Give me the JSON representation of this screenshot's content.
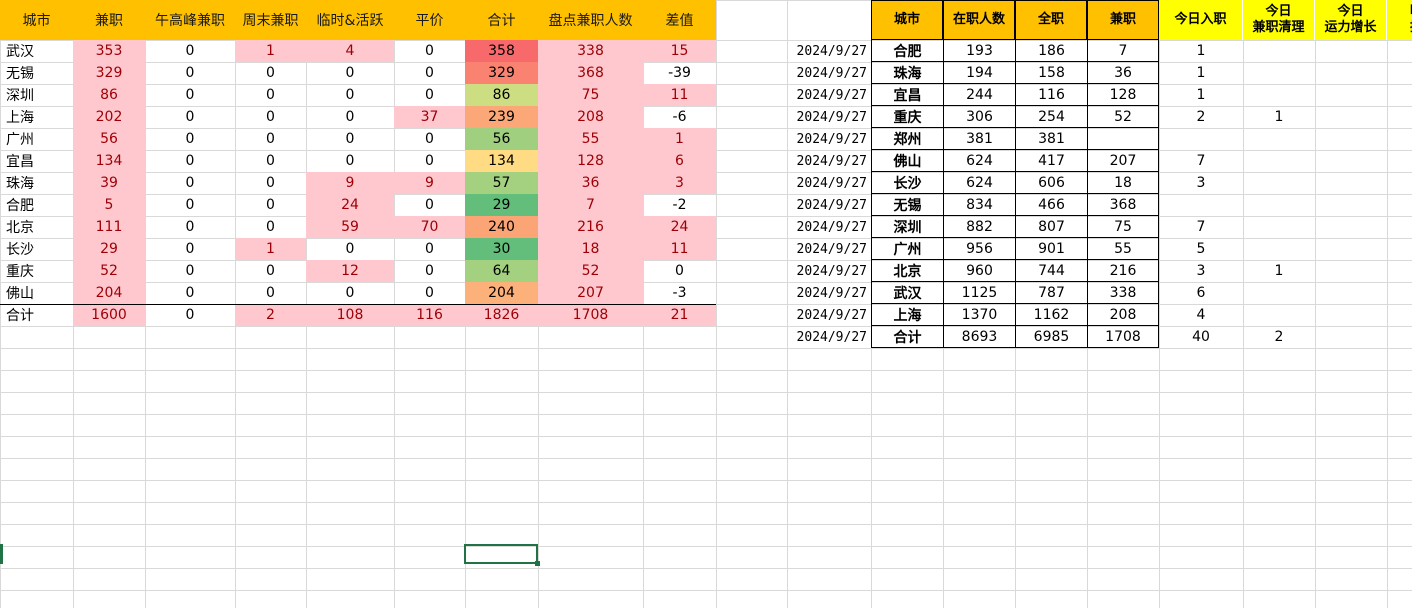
{
  "left_table": {
    "headers": [
      "城市",
      "兼职",
      "午高峰兼职",
      "周末兼职",
      "临时&活跃",
      "平价",
      "合计",
      "盘点兼职人数",
      "差值"
    ],
    "rows": [
      {
        "city": "武汉",
        "parttime": "353",
        "noon": "0",
        "weekend": "1",
        "temp": "4",
        "flat": "0",
        "total": "358",
        "count": "338",
        "diff": "15"
      },
      {
        "city": "无锡",
        "parttime": "329",
        "noon": "0",
        "weekend": "0",
        "temp": "0",
        "flat": "0",
        "total": "329",
        "count": "368",
        "diff": "-39"
      },
      {
        "city": "深圳",
        "parttime": "86",
        "noon": "0",
        "weekend": "0",
        "temp": "0",
        "flat": "0",
        "total": "86",
        "count": "75",
        "diff": "11"
      },
      {
        "city": "上海",
        "parttime": "202",
        "noon": "0",
        "weekend": "0",
        "temp": "0",
        "flat": "37",
        "total": "239",
        "count": "208",
        "diff": "-6"
      },
      {
        "city": "广州",
        "parttime": "56",
        "noon": "0",
        "weekend": "0",
        "temp": "0",
        "flat": "0",
        "total": "56",
        "count": "55",
        "diff": "1"
      },
      {
        "city": "宜昌",
        "parttime": "134",
        "noon": "0",
        "weekend": "0",
        "temp": "0",
        "flat": "0",
        "total": "134",
        "count": "128",
        "diff": "6"
      },
      {
        "city": "珠海",
        "parttime": "39",
        "noon": "0",
        "weekend": "0",
        "temp": "9",
        "flat": "9",
        "total": "57",
        "count": "36",
        "diff": "3"
      },
      {
        "city": "合肥",
        "parttime": "5",
        "noon": "0",
        "weekend": "0",
        "temp": "24",
        "flat": "0",
        "total": "29",
        "count": "7",
        "diff": "-2"
      },
      {
        "city": "北京",
        "parttime": "111",
        "noon": "0",
        "weekend": "0",
        "temp": "59",
        "flat": "70",
        "total": "240",
        "count": "216",
        "diff": "24"
      },
      {
        "city": "长沙",
        "parttime": "29",
        "noon": "0",
        "weekend": "1",
        "temp": "0",
        "flat": "0",
        "total": "30",
        "count": "18",
        "diff": "11"
      },
      {
        "city": "重庆",
        "parttime": "52",
        "noon": "0",
        "weekend": "0",
        "temp": "12",
        "flat": "0",
        "total": "64",
        "count": "52",
        "diff": "0"
      },
      {
        "city": "佛山",
        "parttime": "204",
        "noon": "0",
        "weekend": "0",
        "temp": "0",
        "flat": "0",
        "total": "204",
        "count": "207",
        "diff": "-3"
      }
    ],
    "total_row": {
      "city": "合计",
      "parttime": "1600",
      "noon": "0",
      "weekend": "2",
      "temp": "108",
      "flat": "116",
      "total": "1826",
      "count": "1708",
      "diff": "21"
    }
  },
  "right_table": {
    "headers": [
      "城市",
      "在职人数",
      "全职",
      "兼职",
      "今日入职",
      "今日\n兼职清理",
      "今日\n运力增长",
      "明日\n招聘"
    ],
    "rows": [
      {
        "date": "2024/9/27",
        "city": "合肥",
        "onjob": "193",
        "full": "186",
        "part": "7",
        "join": "1",
        "clear": "",
        "growth": ""
      },
      {
        "date": "2024/9/27",
        "city": "珠海",
        "onjob": "194",
        "full": "158",
        "part": "36",
        "join": "1",
        "clear": "",
        "growth": ""
      },
      {
        "date": "2024/9/27",
        "city": "宜昌",
        "onjob": "244",
        "full": "116",
        "part": "128",
        "join": "1",
        "clear": "",
        "growth": ""
      },
      {
        "date": "2024/9/27",
        "city": "重庆",
        "onjob": "306",
        "full": "254",
        "part": "52",
        "join": "2",
        "clear": "1",
        "growth": ""
      },
      {
        "date": "2024/9/27",
        "city": "郑州",
        "onjob": "381",
        "full": "381",
        "part": "",
        "join": "",
        "clear": "",
        "growth": ""
      },
      {
        "date": "2024/9/27",
        "city": "佛山",
        "onjob": "624",
        "full": "417",
        "part": "207",
        "join": "7",
        "clear": "",
        "growth": ""
      },
      {
        "date": "2024/9/27",
        "city": "长沙",
        "onjob": "624",
        "full": "606",
        "part": "18",
        "join": "3",
        "clear": "",
        "growth": ""
      },
      {
        "date": "2024/9/27",
        "city": "无锡",
        "onjob": "834",
        "full": "466",
        "part": "368",
        "join": "",
        "clear": "",
        "growth": ""
      },
      {
        "date": "2024/9/27",
        "city": "深圳",
        "onjob": "882",
        "full": "807",
        "part": "75",
        "join": "7",
        "clear": "",
        "growth": ""
      },
      {
        "date": "2024/9/27",
        "city": "广州",
        "onjob": "956",
        "full": "901",
        "part": "55",
        "join": "5",
        "clear": "",
        "growth": ""
      },
      {
        "date": "2024/9/27",
        "city": "北京",
        "onjob": "960",
        "full": "744",
        "part": "216",
        "join": "3",
        "clear": "1",
        "growth": ""
      },
      {
        "date": "2024/9/27",
        "city": "武汉",
        "onjob": "1125",
        "full": "787",
        "part": "338",
        "join": "6",
        "clear": "",
        "growth": ""
      },
      {
        "date": "2024/9/27",
        "city": "上海",
        "onjob": "1370",
        "full": "1162",
        "part": "208",
        "join": "4",
        "clear": "",
        "growth": ""
      },
      {
        "date": "2024/9/27",
        "city": "合计",
        "onjob": "8693",
        "full": "6985",
        "part": "1708",
        "join": "40",
        "clear": "2",
        "growth": ""
      }
    ]
  },
  "colors": {
    "header_orange": "#ffc000",
    "header_yellow": "#ffff00",
    "pink_fill": "#ffc7ce",
    "red_text": "#9c0006",
    "selection": "#217346"
  }
}
